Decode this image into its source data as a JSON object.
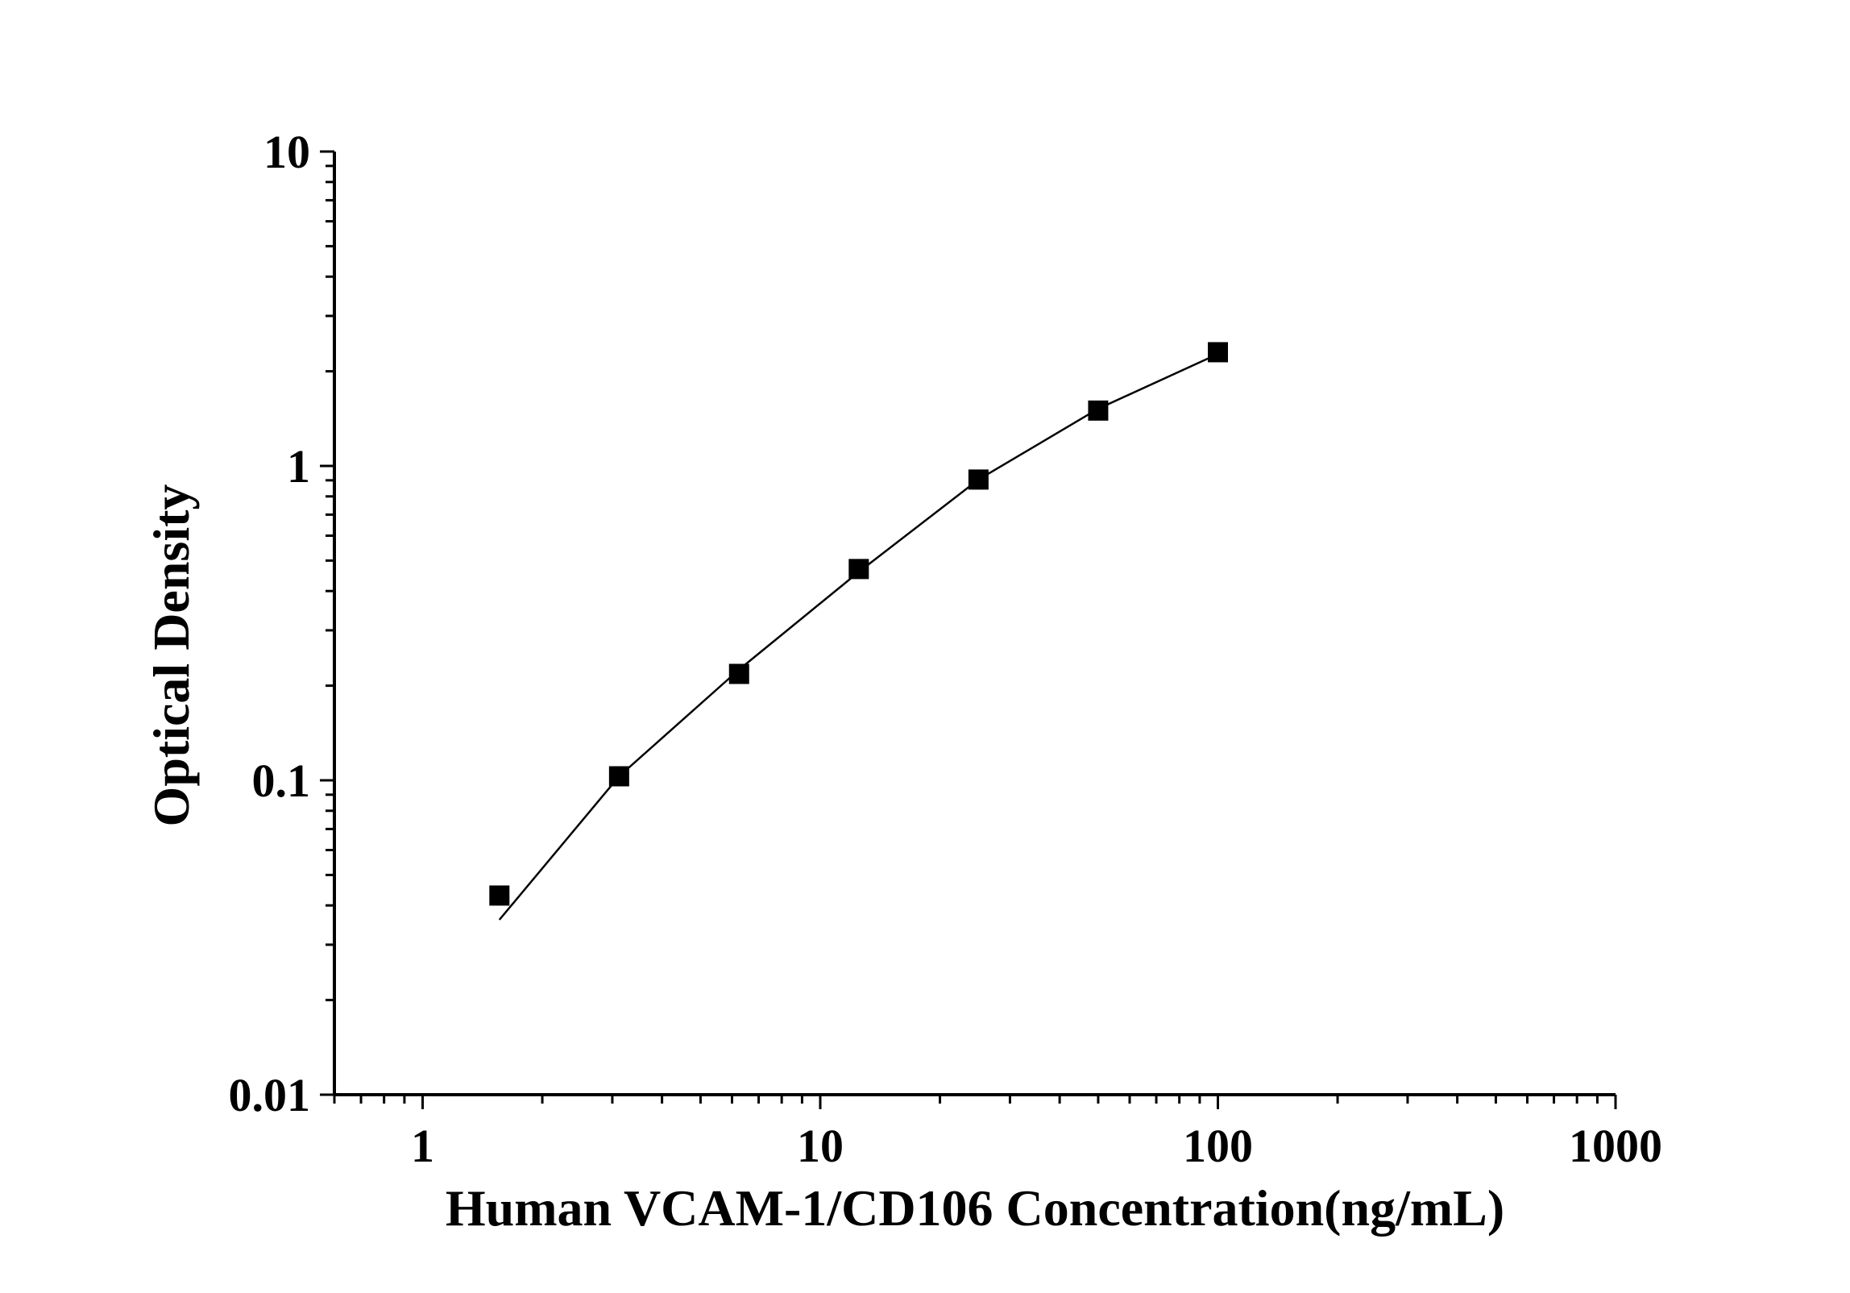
{
  "chart_data": {
    "type": "scatter",
    "title": "",
    "xlabel": "Human VCAM-1/CD106 Concentration(ng/mL)",
    "ylabel": "Optical Density",
    "x_scale": "log",
    "y_scale": "log",
    "xlim": [
      0.6,
      1000
    ],
    "ylim": [
      0.01,
      10
    ],
    "x_ticks": [
      1,
      10,
      100,
      1000
    ],
    "x_tick_labels": [
      "1",
      "10",
      "100",
      "1000"
    ],
    "y_ticks": [
      0.01,
      0.1,
      1,
      10
    ],
    "y_tick_labels": [
      "0.01",
      "0.1",
      "1",
      "10"
    ],
    "grid": false,
    "marker_color": "#000000",
    "series": [
      {
        "x": [
          1.56,
          3.12,
          6.25,
          12.5,
          25,
          50,
          100
        ],
        "y": [
          0.043,
          0.103,
          0.218,
          0.47,
          0.905,
          1.5,
          2.3
        ]
      }
    ],
    "fit_curve": {
      "x": [
        1.56,
        3.12,
        6.25,
        12.5,
        25,
        50,
        100
      ],
      "y": [
        0.036,
        0.103,
        0.225,
        0.46,
        0.905,
        1.52,
        2.27
      ]
    }
  }
}
